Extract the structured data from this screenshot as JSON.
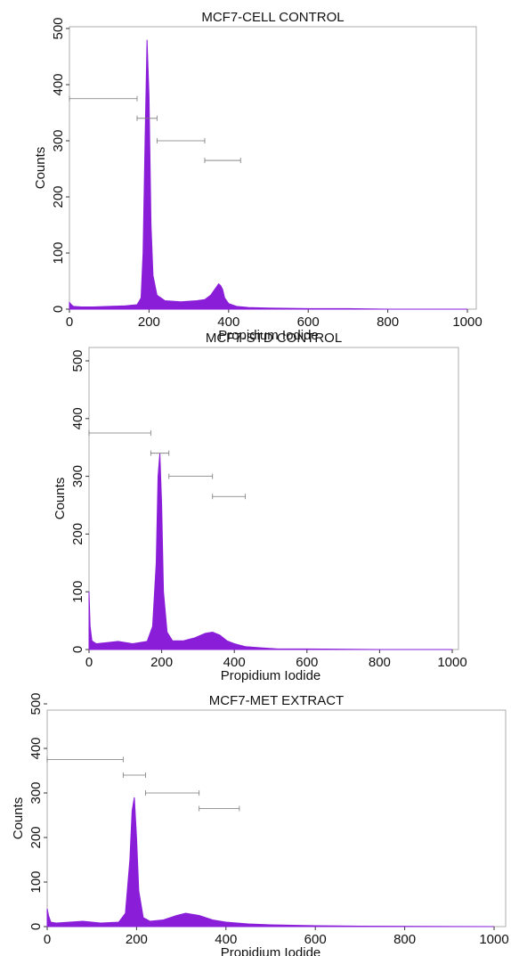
{
  "chart_data": [
    {
      "type": "area",
      "title": "MCF7-CELL CONTROL",
      "x_label": "Propidium Iodide",
      "y_label": "Counts",
      "color": "#8a1ed8",
      "xlim": [
        0,
        1000
      ],
      "ylim": [
        0,
        500
      ],
      "xticks": [
        0,
        200,
        400,
        600,
        800,
        1000
      ],
      "yticks": [
        0,
        100,
        200,
        300,
        400,
        500
      ],
      "x": [
        0,
        5,
        10,
        30,
        60,
        100,
        140,
        170,
        180,
        185,
        190,
        195,
        200,
        205,
        210,
        220,
        240,
        260,
        280,
        300,
        320,
        340,
        355,
        365,
        375,
        380,
        385,
        390,
        400,
        420,
        450,
        500,
        600,
        700,
        800,
        1000
      ],
      "values": [
        12,
        8,
        5,
        4,
        4,
        5,
        6,
        8,
        20,
        100,
        300,
        480,
        380,
        150,
        60,
        25,
        15,
        14,
        13,
        14,
        15,
        17,
        25,
        35,
        45,
        42,
        35,
        20,
        10,
        5,
        3,
        2,
        1,
        1,
        0,
        0
      ]
    },
    {
      "type": "area",
      "title": "MCF7-STD CONTROL",
      "x_label": "Propidium Iodide",
      "y_label": "Counts",
      "color": "#8a1ed8",
      "xlim": [
        0,
        1000
      ],
      "ylim": [
        0,
        500
      ],
      "xticks": [
        0,
        200,
        400,
        600,
        800,
        1000
      ],
      "yticks": [
        0,
        100,
        200,
        300,
        400,
        500
      ],
      "x": [
        0,
        3,
        8,
        20,
        50,
        80,
        120,
        160,
        175,
        185,
        190,
        195,
        200,
        205,
        215,
        230,
        260,
        290,
        320,
        340,
        360,
        380,
        400,
        430,
        470,
        520,
        600,
        800,
        1000
      ],
      "values": [
        100,
        40,
        15,
        10,
        12,
        14,
        10,
        14,
        40,
        150,
        300,
        340,
        250,
        100,
        30,
        15,
        15,
        20,
        28,
        30,
        25,
        15,
        10,
        5,
        3,
        1,
        1,
        0,
        0
      ]
    },
    {
      "type": "area",
      "title": "MCF7-MET EXTRACT",
      "x_label": "Propidium Iodide",
      "y_label": "Counts",
      "color": "#8a1ed8",
      "xlim": [
        0,
        1000
      ],
      "ylim": [
        0,
        500
      ],
      "xticks": [
        0,
        200,
        400,
        600,
        800,
        1000
      ],
      "yticks": [
        0,
        100,
        200,
        300,
        400,
        500
      ],
      "x": [
        0,
        3,
        8,
        20,
        50,
        80,
        120,
        160,
        175,
        185,
        190,
        195,
        200,
        205,
        215,
        230,
        260,
        290,
        310,
        340,
        370,
        400,
        450,
        500,
        600,
        700,
        1000
      ],
      "values": [
        40,
        25,
        10,
        8,
        10,
        12,
        8,
        10,
        30,
        150,
        260,
        290,
        200,
        80,
        20,
        12,
        15,
        25,
        30,
        25,
        15,
        10,
        6,
        4,
        2,
        1,
        0
      ]
    }
  ]
}
